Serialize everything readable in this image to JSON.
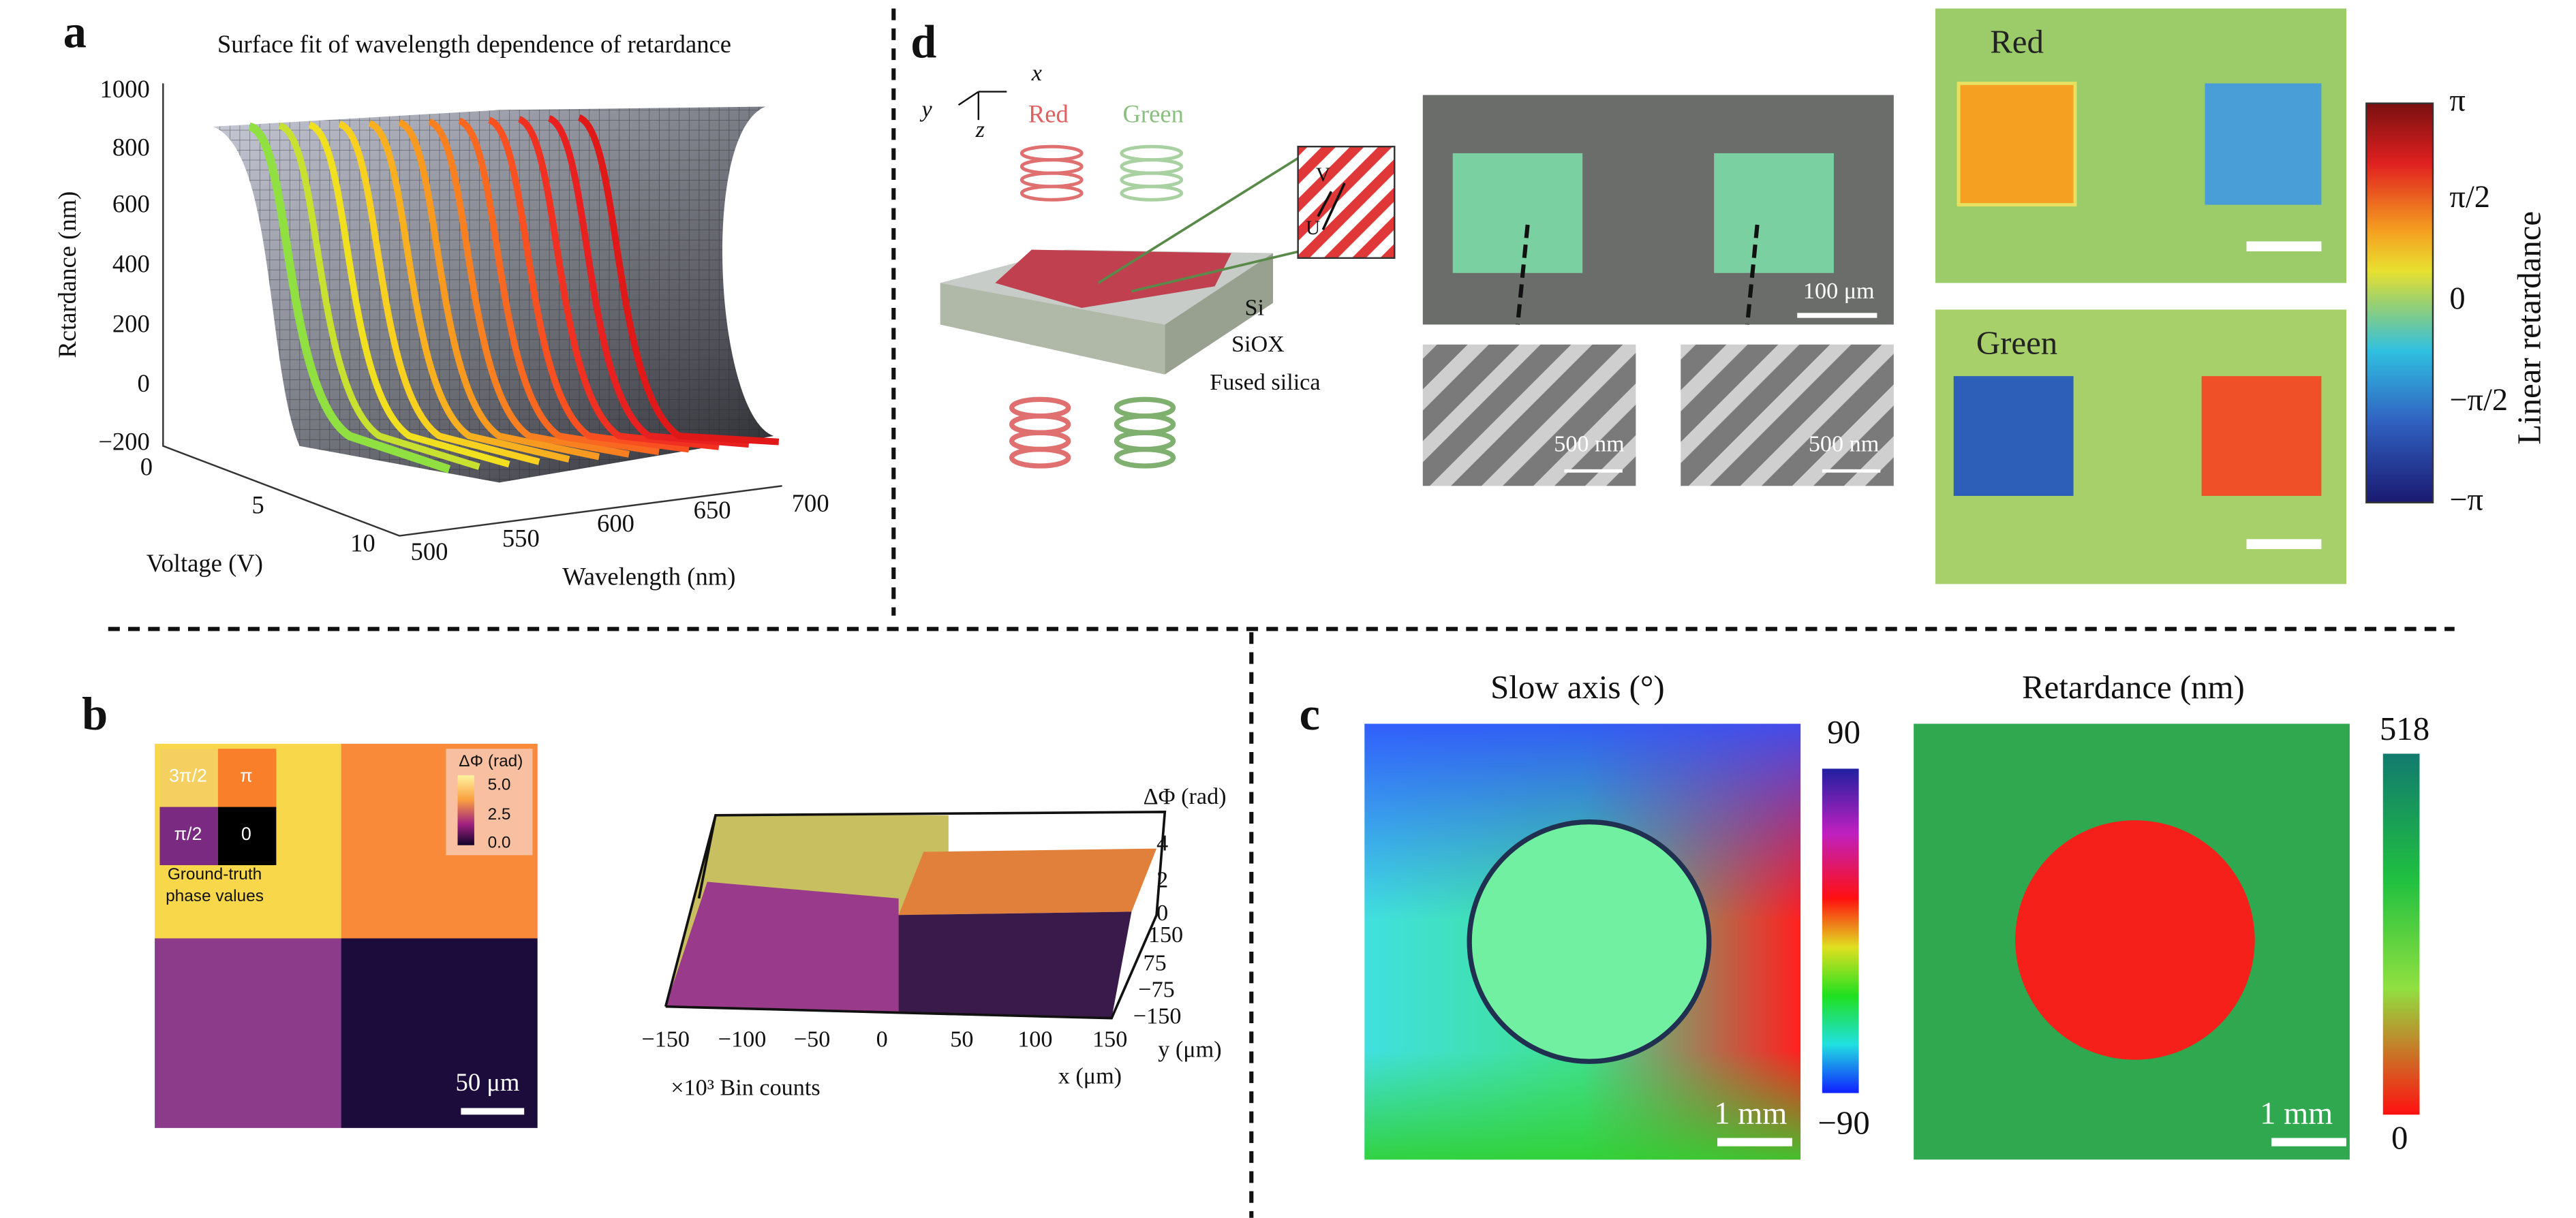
{
  "panel_a": {
    "label": "a",
    "title": "Surface fit of wavelength dependence of retardance",
    "z_axis_label": "Rctardance (nm)",
    "z_ticks": [
      "1000",
      "800",
      "600",
      "400",
      "200",
      "0",
      "−200"
    ],
    "voltage_axis_label": "Voltage (V)",
    "voltage_ticks": [
      "0",
      "5",
      "10"
    ],
    "wavelength_axis_label": "Wavelength (nm)",
    "wavelength_ticks": [
      "500",
      "550",
      "600",
      "650",
      "700"
    ]
  },
  "panel_b": {
    "label": "b",
    "inset_phases": [
      "3π/2",
      "π",
      "π/2",
      "0"
    ],
    "inset_caption": [
      "Ground-truth",
      "phase values"
    ],
    "colorbar_title": "ΔΦ (rad)",
    "colorbar_ticks": [
      "5.0",
      "2.5",
      "0.0"
    ],
    "scale_bar": "50 μm",
    "plot3d": {
      "z_label": "ΔΦ (rad)",
      "z_ticks": [
        "4",
        "2",
        "0"
      ],
      "y_ticks": [
        "150",
        "75",
        "−75",
        "−150"
      ],
      "y_label": "y (μm)",
      "x_ticks": [
        "−150",
        "−100",
        "−50",
        "0",
        "50",
        "100",
        "150"
      ],
      "x_label": "x (μm)",
      "note": "×10³ Bin counts"
    }
  },
  "panel_c": {
    "label": "c",
    "maps": [
      {
        "title": "Slow axis (°)",
        "colorbar_max": "90",
        "colorbar_min": "−90",
        "scale_bar": "1 mm"
      },
      {
        "title": "Retardance (nm)",
        "colorbar_max": "518",
        "colorbar_min": "0",
        "scale_bar": "1 mm"
      }
    ]
  },
  "panel_d": {
    "label": "d",
    "axes": [
      "x",
      "y",
      "z"
    ],
    "beams": [
      "Red",
      "Green"
    ],
    "layers": [
      "Si",
      "SiOX",
      "Fused silica"
    ],
    "optic_axes": [
      "V",
      "U"
    ],
    "micrograph_scale": "100 μm",
    "sem_scales": [
      "500 nm",
      "500 nm"
    ],
    "map_titles": [
      "Red",
      "Green"
    ],
    "colorbar_ticks": [
      "π",
      "π/2",
      "0",
      "−π/2",
      "−π"
    ],
    "colorbar_label": "Linear retardance"
  }
}
